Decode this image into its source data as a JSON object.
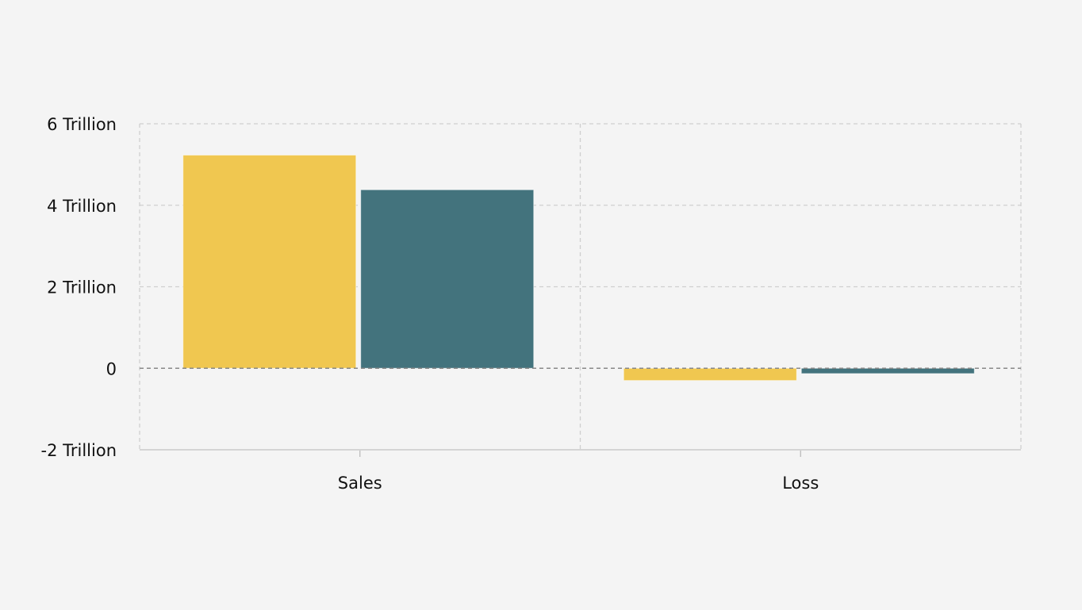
{
  "chart_data": {
    "type": "bar",
    "categories": [
      "Sales",
      "Loss"
    ],
    "series": [
      {
        "values": [
          5230000000000.0,
          -300000000000.0
        ],
        "color": "#f0c750"
      },
      {
        "values": [
          4380000000000.0,
          -130000000000.0
        ],
        "color": "#43737d"
      }
    ],
    "ylim": [
      -2000000000000.0,
      6000000000000.0
    ],
    "yticks": [
      6000000000000.0,
      4000000000000.0,
      2000000000000.0,
      0,
      -2000000000000.0
    ],
    "ytick_labels": [
      "6 Trillion",
      "4 Trillion",
      "2 Trillion",
      "0",
      "-2 Trillion"
    ],
    "title": "",
    "xlabel": "",
    "ylabel": "",
    "grid": true,
    "legend": "none"
  }
}
